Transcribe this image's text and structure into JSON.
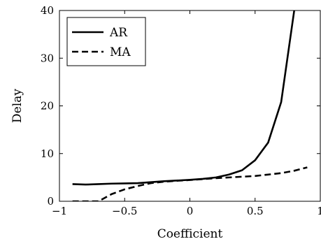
{
  "chart_data": {
    "type": "line",
    "xlabel": "Coefficient",
    "ylabel": "Delay",
    "xlim": [
      -1,
      1
    ],
    "ylim": [
      0,
      40
    ],
    "x_ticks": [
      -1,
      -0.5,
      0,
      0.5,
      1
    ],
    "x_tick_labels": [
      "−1",
      "−0.5",
      "0",
      "0.5",
      "1"
    ],
    "y_ticks": [
      0,
      10,
      20,
      30,
      40
    ],
    "y_tick_labels": [
      "0",
      "10",
      "20",
      "30",
      "40"
    ],
    "grid": false,
    "legend_position": "top-left",
    "series": [
      {
        "name": "AR",
        "style": "solid",
        "color": "#000000",
        "x": [
          -0.9,
          -0.8,
          -0.7,
          -0.6,
          -0.5,
          -0.4,
          -0.3,
          -0.2,
          -0.1,
          0,
          0.1,
          0.2,
          0.3,
          0.4,
          0.5,
          0.6,
          0.7,
          0.8
        ],
        "y": [
          3.6,
          3.5,
          3.6,
          3.7,
          3.75,
          3.8,
          4.0,
          4.2,
          4.35,
          4.5,
          4.7,
          5.0,
          5.6,
          6.5,
          8.6,
          12.3,
          20.8,
          40.0
        ]
      },
      {
        "name": "MA",
        "style": "dashed",
        "color": "#000000",
        "x": [
          -0.9,
          -0.8,
          -0.7,
          -0.6,
          -0.5,
          -0.4,
          -0.3,
          -0.2,
          -0.1,
          0,
          0.1,
          0.2,
          0.3,
          0.4,
          0.5,
          0.6,
          0.7,
          0.8,
          0.9
        ],
        "y": [
          0.0,
          0.0,
          0.0,
          1.5,
          2.5,
          3.2,
          3.8,
          4.1,
          4.3,
          4.45,
          4.65,
          4.85,
          5.0,
          5.15,
          5.3,
          5.6,
          5.9,
          6.4,
          7.1
        ]
      }
    ]
  }
}
